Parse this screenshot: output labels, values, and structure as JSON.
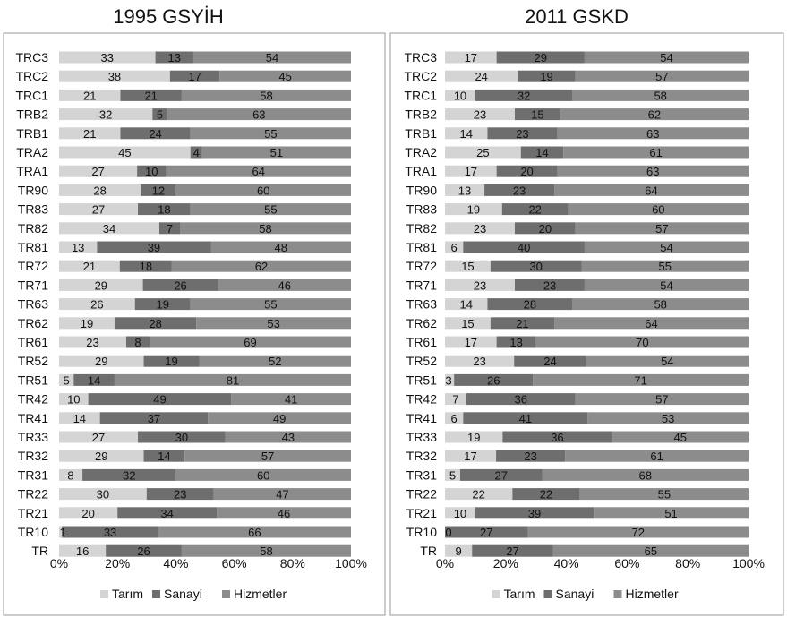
{
  "chart_data": [
    {
      "type": "bar",
      "stacked": "percent",
      "orientation": "horizontal",
      "title": "1995 GSYİH",
      "categories": [
        "TRC3",
        "TRC2",
        "TRC1",
        "TRB2",
        "TRB1",
        "TRA2",
        "TRA1",
        "TR90",
        "TR83",
        "TR82",
        "TR81",
        "TR72",
        "TR71",
        "TR63",
        "TR62",
        "TR61",
        "TR52",
        "TR51",
        "TR42",
        "TR41",
        "TR33",
        "TR32",
        "TR31",
        "TR22",
        "TR21",
        "TR10",
        "TR"
      ],
      "series": [
        {
          "name": "Tarım",
          "values": [
            33,
            38,
            21,
            32,
            21,
            45,
            27,
            28,
            27,
            34,
            13,
            21,
            29,
            26,
            19,
            23,
            29,
            5,
            10,
            14,
            27,
            29,
            8,
            30,
            20,
            1,
            16
          ]
        },
        {
          "name": "Sanayi",
          "values": [
            13,
            17,
            21,
            5,
            24,
            4,
            10,
            12,
            18,
            7,
            39,
            18,
            26,
            19,
            28,
            8,
            19,
            14,
            49,
            37,
            30,
            14,
            32,
            23,
            34,
            33,
            26
          ]
        },
        {
          "name": "Hizmetler",
          "values": [
            54,
            45,
            58,
            63,
            55,
            51,
            64,
            60,
            55,
            58,
            48,
            62,
            46,
            55,
            53,
            69,
            52,
            81,
            41,
            49,
            43,
            57,
            60,
            47,
            46,
            66,
            58
          ]
        }
      ],
      "xlim": [
        0,
        100
      ],
      "xticks": [
        "0%",
        "20%",
        "40%",
        "60%",
        "80%",
        "100%"
      ],
      "legend_position": "bottom",
      "colors": {
        "Tarım": "#d4d4d4",
        "Sanayi": "#6e6e6e",
        "Hizmetler": "#8c8c8c"
      }
    },
    {
      "type": "bar",
      "stacked": "percent",
      "orientation": "horizontal",
      "title": "2011 GSKD",
      "categories": [
        "TRC3",
        "TRC2",
        "TRC1",
        "TRB2",
        "TRB1",
        "TRA2",
        "TRA1",
        "TR90",
        "TR83",
        "TR82",
        "TR81",
        "TR72",
        "TR71",
        "TR63",
        "TR62",
        "TR61",
        "TR52",
        "TR51",
        "TR42",
        "TR41",
        "TR33",
        "TR32",
        "TR31",
        "TR22",
        "TR21",
        "TR10",
        "TR"
      ],
      "series": [
        {
          "name": "Tarım",
          "values": [
            17,
            24,
            10,
            23,
            14,
            25,
            17,
            13,
            19,
            23,
            6,
            15,
            23,
            14,
            15,
            17,
            23,
            3,
            7,
            6,
            19,
            17,
            5,
            22,
            10,
            0,
            9
          ]
        },
        {
          "name": "Sanayi",
          "values": [
            29,
            19,
            32,
            15,
            23,
            14,
            20,
            23,
            22,
            20,
            40,
            30,
            23,
            28,
            21,
            13,
            24,
            26,
            36,
            41,
            36,
            23,
            27,
            22,
            39,
            27,
            27
          ]
        },
        {
          "name": "Hizmetler",
          "values": [
            54,
            57,
            58,
            62,
            63,
            61,
            63,
            64,
            60,
            57,
            54,
            55,
            54,
            58,
            64,
            70,
            54,
            71,
            57,
            53,
            45,
            61,
            68,
            55,
            51,
            72,
            65
          ]
        }
      ],
      "xlim": [
        0,
        100
      ],
      "xticks": [
        "0%",
        "20%",
        "40%",
        "60%",
        "80%",
        "100%"
      ],
      "legend_position": "bottom",
      "colors": {
        "Tarım": "#d4d4d4",
        "Sanayi": "#6e6e6e",
        "Hizmetler": "#8c8c8c"
      }
    }
  ]
}
